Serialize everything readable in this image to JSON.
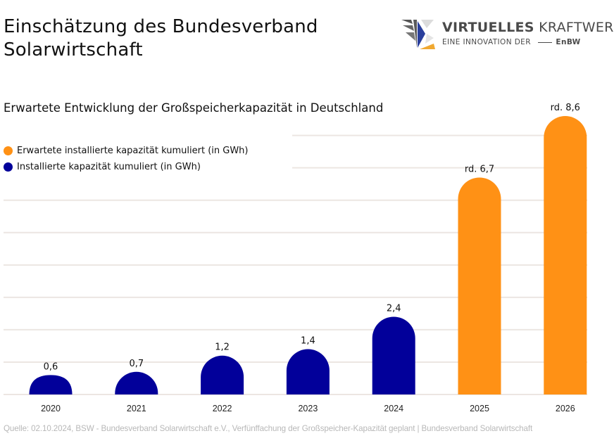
{
  "header": {
    "title_line1": "Einschätzung des Bundesverband",
    "title_line2": "Solarwirtschaft"
  },
  "logo": {
    "name_bold": "VIRTUELLES",
    "name_light": "KRAFTWERK",
    "tagline": "EINE INNOVATION DER",
    "partner": "EnBW",
    "colors": {
      "grey": "#555555",
      "blue": "#2a3f9c",
      "orange": "#f0a830",
      "light": "#d8d8d8"
    }
  },
  "chart_data": {
    "type": "bar",
    "title": "Erwartete Entwicklung der Großspeicherkapazität in Deutschland",
    "xlabel": "",
    "ylabel": "",
    "categories": [
      "2020",
      "2021",
      "2022",
      "2023",
      "2024",
      "2025",
      "2026"
    ],
    "values": [
      0.6,
      0.7,
      1.2,
      1.4,
      2.4,
      6.7,
      8.6
    ],
    "data_labels": [
      "0,6",
      "0,7",
      "1,2",
      "1,4",
      "2,4",
      "rd. 6,7",
      "rd. 8,6"
    ],
    "series_of_point": [
      "installed",
      "installed",
      "installed",
      "installed",
      "installed",
      "expected",
      "expected"
    ],
    "series": [
      {
        "key": "expected",
        "name": "Erwartete installierte kapazität kumuliert (in GWh)",
        "color": "#ff9115"
      },
      {
        "key": "installed",
        "name": "Installierte kapazität kumuliert (in GWh)",
        "color": "#02009a"
      }
    ],
    "ylim": [
      0,
      8.6
    ],
    "gridlines": [
      0,
      1,
      2,
      3,
      4,
      5,
      6,
      7,
      8
    ],
    "grid": true,
    "legend_position": "top-left",
    "gridline_color": "#ece6e2"
  },
  "footer": {
    "source": "Quelle: 02.10.2024, BSW - Bundesverband Solarwirtschaft e.V., Verfünffachung der Großspeicher-Kapazität geplant | Bundesverband Solarwirtschaft"
  }
}
